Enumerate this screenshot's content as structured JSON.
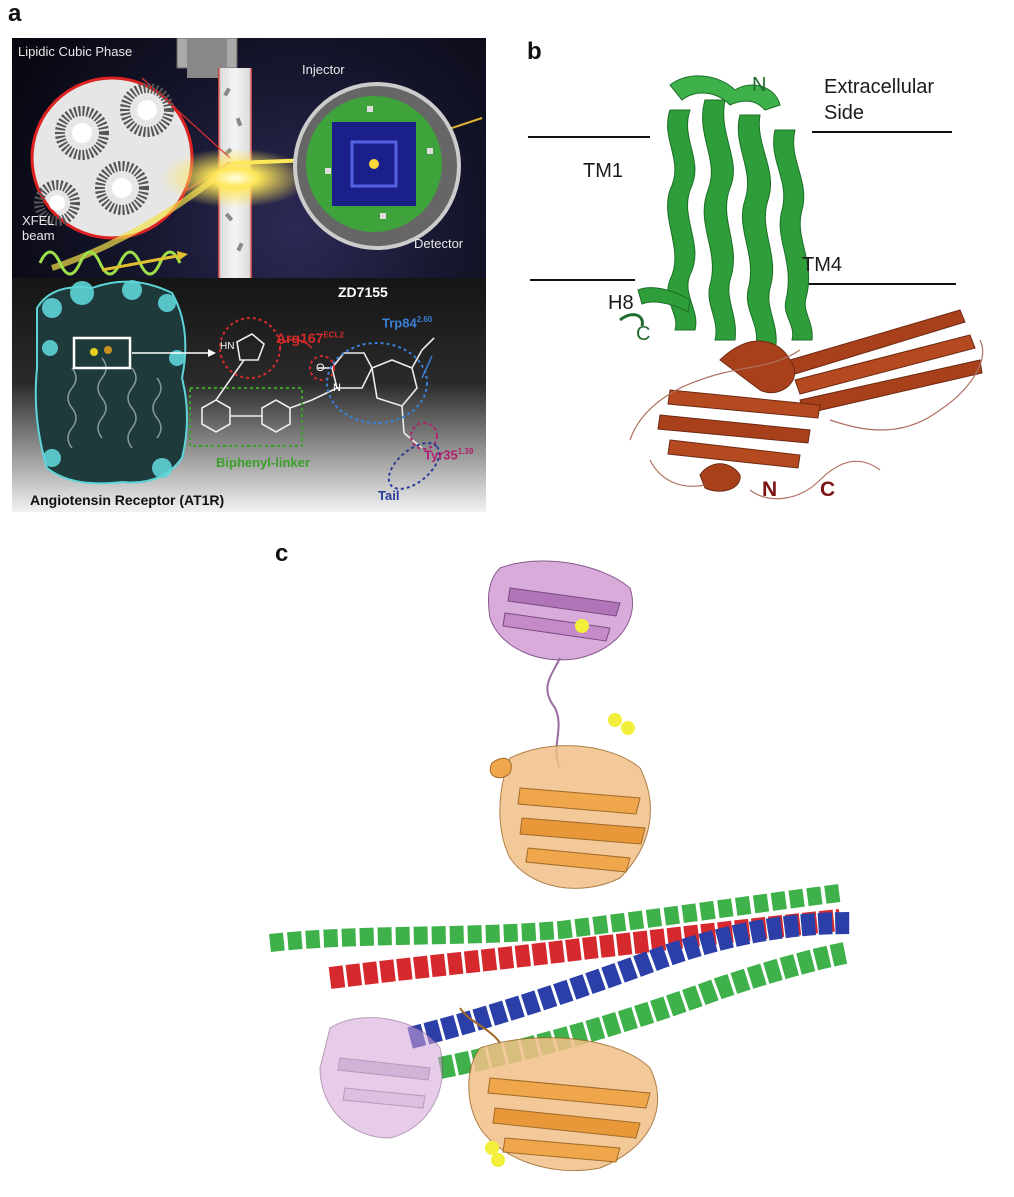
{
  "panel_a": {
    "letter": "a",
    "lipidic_cubic_phase": "Lipidic Cubic Phase",
    "injector": "Injector",
    "detector": "Detector",
    "xfel_line1": "XFEL",
    "xfel_line2": "beam",
    "compound": "ZD7155",
    "arg_label": "Arg167",
    "arg_sup": "ECL2",
    "trp_label": "Trp84",
    "trp_sup": "2.60",
    "tyr_label": "Tyr35",
    "tyr_sup": "1.39",
    "biphenyl_label": "Biphenyl-linker",
    "tail_label": "Tail",
    "receptor_caption": "Angiotensin Receptor (AT1R)",
    "atom_hn": "HN",
    "atom_n": "N",
    "atom_o": "O",
    "colors": {
      "arg": "#d42a2a",
      "trp": "#3a7fd8",
      "tyr": "#b01f6e",
      "biphenyl": "#3aa02a",
      "tail": "#2a3a9a"
    }
  },
  "panel_b": {
    "letter": "b",
    "n_top": "N",
    "extracellular_line1": "Extracellular",
    "extracellular_line2": "Side",
    "tm1": "TM1",
    "tm4": "TM4",
    "h8": "H8",
    "c_green": "C",
    "n_bottom": "N",
    "c_bottom": "C",
    "colors": {
      "gpcr": "#2e9e3a",
      "fusion": "#a8401c",
      "dark_green": "#1f6b2e",
      "dark_red": "#7a1414"
    }
  },
  "panel_c": {
    "letter": "c",
    "colors": {
      "red": "#d6292e",
      "blue": "#2c3fa8",
      "green": "#3fb14a",
      "orange": "#f0a64a",
      "purple": "#c48bc8",
      "sulfur": "#f2ef3a"
    }
  }
}
